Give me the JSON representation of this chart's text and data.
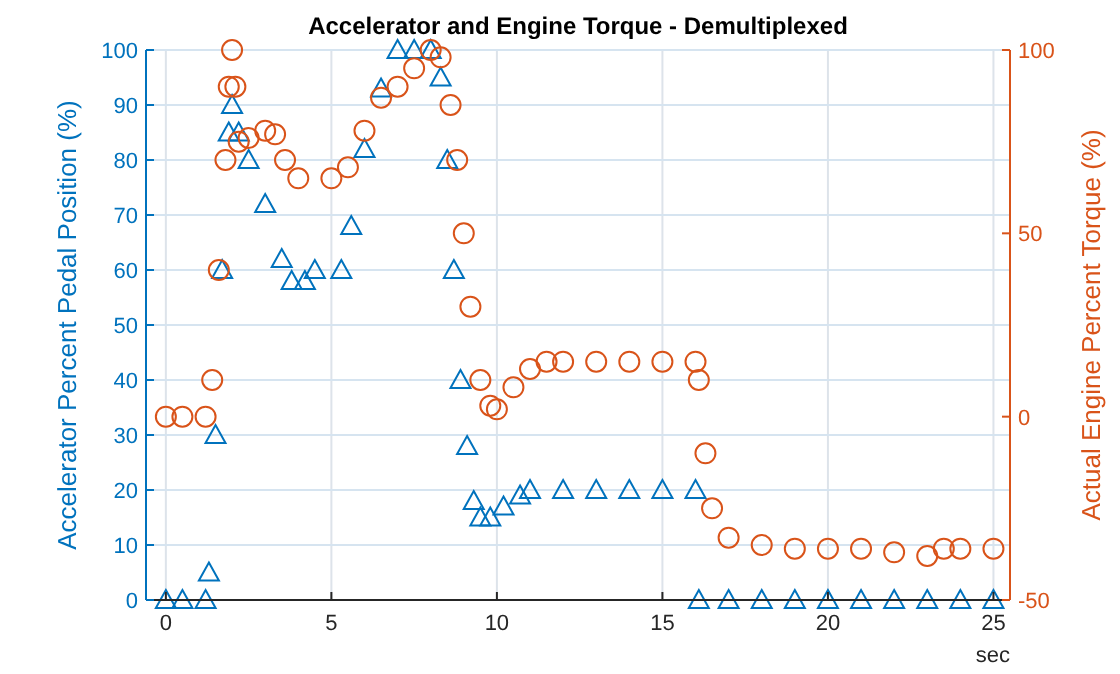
{
  "chart_data": {
    "type": "scatter",
    "title": "Accelerator and Engine Torque - Demultiplexed",
    "xlabel": "sec",
    "ylabel": "Accelerator Percent Pedal Position (%)",
    "y2label": "Actual Engine Percent Torque (%)",
    "xlim": [
      -0.6,
      25.5
    ],
    "xticks": [
      0,
      5,
      10,
      15,
      20,
      25
    ],
    "ylim": [
      0,
      100
    ],
    "yticks": [
      0,
      10,
      20,
      30,
      40,
      50,
      60,
      70,
      80,
      90,
      100
    ],
    "y2lim": [
      -50,
      100
    ],
    "y2ticks": [
      -50,
      0,
      50,
      100
    ],
    "grid": true,
    "series": [
      {
        "color": "#0072bd",
        "marker": "triangle",
        "x": [
          0,
          0.5,
          1.2,
          1.3,
          1.5,
          1.7,
          1.9,
          2.0,
          2.2,
          2.5,
          3,
          3.5,
          3.8,
          4.2,
          4.5,
          5.3,
          5.6,
          6,
          6.5,
          7,
          7.5,
          8,
          8.3,
          8.5,
          8.7,
          8.9,
          9.1,
          9.3,
          9.5,
          9.8,
          10.2,
          10.7,
          11,
          12,
          13,
          14,
          15,
          16,
          16.1,
          17,
          18,
          19,
          20,
          21,
          22,
          23,
          24,
          25
        ],
        "values": [
          0,
          0,
          0,
          5,
          30,
          60,
          85,
          90,
          85,
          80,
          72,
          62,
          58,
          58,
          60,
          60,
          68,
          82,
          93,
          100,
          100,
          100,
          95,
          80,
          60,
          40,
          28,
          18,
          15,
          15,
          17,
          19,
          20,
          20,
          20,
          20,
          20,
          20,
          0,
          0,
          0,
          0,
          0,
          0,
          0,
          0,
          0,
          0
        ]
      },
      {
        "color": "#d95319",
        "marker": "circle",
        "axis": "y2",
        "x": [
          0,
          0.5,
          1.2,
          1.4,
          1.6,
          1.8,
          1.9,
          2.0,
          2.1,
          2.2,
          2.5,
          3,
          3.3,
          3.6,
          4,
          5,
          5.5,
          6,
          6.5,
          7,
          7.5,
          8,
          8.3,
          8.6,
          8.8,
          9,
          9.2,
          9.5,
          9.8,
          10,
          10.5,
          11,
          11.5,
          12,
          13,
          14,
          15,
          16,
          16.1,
          16.3,
          16.5,
          17,
          18,
          19,
          20,
          21,
          22,
          23,
          23.5,
          24,
          25
        ],
        "values": [
          0,
          0,
          0,
          10,
          40,
          70,
          90,
          100,
          90,
          75,
          76,
          78,
          77,
          70,
          65,
          65,
          68,
          78,
          87,
          90,
          95,
          100,
          98,
          85,
          70,
          50,
          30,
          10,
          3,
          2,
          8,
          13,
          15,
          15,
          15,
          15,
          15,
          15,
          10,
          -10,
          -25,
          -33,
          -35,
          -36,
          -36,
          -36,
          -37,
          -38,
          -36,
          -36,
          -36
        ]
      }
    ]
  }
}
